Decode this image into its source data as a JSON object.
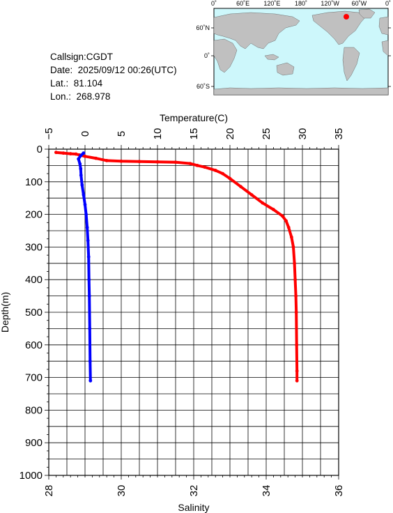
{
  "info": {
    "callsign": "Callsign:CGDT",
    "date_label": "Date:",
    "date_value": "2025/09/12 00:26(UTC)",
    "lat_label": "Lat.:",
    "lat_value": "81.104",
    "lon_label": "Lon.:",
    "lon_value": "268.978"
  },
  "map": {
    "top_labels": [
      "0˚",
      "60˚E",
      "120˚E",
      "180˚",
      "120˚W",
      "60˚W",
      "0˚"
    ],
    "lat_labels": [
      "60˚N",
      "0˚",
      "60˚S"
    ],
    "ocean_color": "#cdf7fb",
    "land_color": "#c0c0c0",
    "marker_color": "#ff0000"
  },
  "chart_data": {
    "type": "line",
    "top_axis": {
      "label": "Temperature(C)",
      "range": [
        -5,
        35
      ],
      "ticks": [
        -5,
        0,
        5,
        10,
        15,
        20,
        25,
        30,
        35
      ]
    },
    "bottom_axis": {
      "label": "Salinity",
      "range": [
        28,
        36
      ],
      "ticks": [
        28,
        30,
        32,
        34,
        36
      ]
    },
    "y_axis": {
      "label": "Depth(m)",
      "range": [
        0,
        1000
      ],
      "inverted": true,
      "ticks": [
        0,
        100,
        200,
        300,
        400,
        500,
        600,
        700,
        800,
        900,
        1000
      ]
    },
    "grid": true,
    "series": [
      {
        "color": "#ff0000",
        "axis": "bottom",
        "x": [
          28.2,
          28.4,
          28.6,
          28.75,
          28.85,
          29.0,
          29.3,
          29.6,
          30.0,
          30.5,
          31.0,
          31.5,
          31.9,
          32.1,
          32.3,
          32.6,
          32.8,
          33.0,
          33.3,
          33.6,
          33.9,
          34.2,
          34.45,
          34.55,
          34.62,
          34.7,
          34.75,
          34.78,
          34.8,
          34.82,
          34.83,
          34.84,
          34.85,
          34.85
        ],
        "y": [
          10,
          12,
          14,
          15,
          18,
          22,
          28,
          35,
          37,
          38,
          39,
          40,
          44,
          50,
          55,
          65,
          75,
          90,
          115,
          140,
          165,
          185,
          205,
          220,
          240,
          270,
          300,
          350,
          400,
          450,
          500,
          600,
          680,
          710
        ]
      },
      {
        "color": "#0000ff",
        "axis": "top",
        "x": [
          -0.2,
          -0.6,
          -0.9,
          -0.7,
          -0.6,
          -0.55,
          -0.4,
          -0.2,
          0.0,
          0.15,
          0.3,
          0.4,
          0.5,
          0.55,
          0.6,
          0.65,
          0.7,
          0.75
        ],
        "y": [
          12,
          20,
          30,
          45,
          60,
          80,
          110,
          140,
          170,
          200,
          240,
          280,
          330,
          400,
          450,
          550,
          650,
          710
        ]
      }
    ]
  }
}
